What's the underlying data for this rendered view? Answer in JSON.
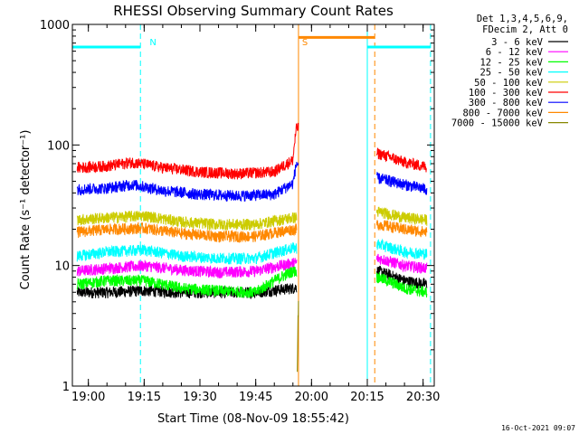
{
  "chart_data": {
    "type": "line",
    "title": "RHESSI Observing Summary Count Rates",
    "xlabel": "Start Time (08-Nov-09 18:55:42)",
    "ylabel": "Count Rate (s⁻¹ detector⁻¹)",
    "y_scale": "log",
    "ylim": [
      1,
      1000
    ],
    "xlim": [
      "18:55:42",
      "20:33:00"
    ],
    "x_ticks": [
      "19:00",
      "19:15",
      "19:30",
      "19:45",
      "20:00",
      "20:15",
      "20:30"
    ],
    "y_ticks": [
      "1",
      "10",
      "100",
      "1000"
    ],
    "grid": false,
    "legend_position": "right",
    "legend_header": [
      "Det 1,3,4,5,6,9,",
      "FDecim 2, Att 0"
    ],
    "footer_date": "16-Oct-2021 09:07",
    "annotations": [
      {
        "text": "N",
        "x": "19:15",
        "color": "#00ffff"
      },
      {
        "text": "S",
        "x": "19:56",
        "color": "#ff8800"
      }
    ],
    "time_intervals": [
      {
        "label": "night",
        "color": "#00ffff",
        "start": "18:55:42",
        "end": "19:14:00",
        "level": 650
      },
      {
        "label": "saa",
        "color": "#ff8800",
        "start": "19:56:30",
        "end": "20:17:00",
        "level": 780
      },
      {
        "label": "night",
        "color": "#00ffff",
        "start": "20:15:00",
        "end": "20:32:00",
        "level": 650
      }
    ],
    "markers": [
      {
        "x": "18:55:42",
        "color": "#00ffff",
        "style": "solid"
      },
      {
        "x": "19:14:00",
        "color": "#00ffff",
        "style": "dashed"
      },
      {
        "x": "19:56:30",
        "color": "#ff8800",
        "style": "solid"
      },
      {
        "x": "20:15:00",
        "color": "#00ffff",
        "style": "solid"
      },
      {
        "x": "20:17:00",
        "color": "#ff8800",
        "style": "dashed"
      },
      {
        "x": "20:32:00",
        "color": "#00ffff",
        "style": "dashed"
      }
    ],
    "series": [
      {
        "name": "3 - 6 keV",
        "color": "#000000",
        "data_gaps": [
          [
            "19:56:30",
            "20:17:30"
          ]
        ],
        "points": [
          [
            "18:57:00",
            6.0
          ],
          [
            "19:05:00",
            6.0
          ],
          [
            "19:15:00",
            6.2
          ],
          [
            "19:25:00",
            6.0
          ],
          [
            "19:35:00",
            6.0
          ],
          [
            "19:45:00",
            6.0
          ],
          [
            "19:55:00",
            6.5
          ],
          [
            "20:18:00",
            9.0
          ],
          [
            "20:25:00",
            7.5
          ],
          [
            "20:31:00",
            7.0
          ]
        ]
      },
      {
        "name": "6 - 12 keV",
        "color": "#ff00ff",
        "data_gaps": [
          [
            "19:56:30",
            "20:17:30"
          ]
        ],
        "points": [
          [
            "18:57:00",
            9.0
          ],
          [
            "19:05:00",
            9.5
          ],
          [
            "19:15:00",
            10.0
          ],
          [
            "19:25:00",
            9.2
          ],
          [
            "19:35:00",
            8.8
          ],
          [
            "19:45:00",
            9.0
          ],
          [
            "19:55:00",
            10.5
          ],
          [
            "20:18:00",
            11.5
          ],
          [
            "20:25:00",
            10.0
          ],
          [
            "20:31:00",
            9.5
          ]
        ]
      },
      {
        "name": "12 - 25 keV",
        "color": "#00ff00",
        "data_gaps": [
          [
            "19:56:30",
            "20:17:30"
          ]
        ],
        "points": [
          [
            "18:57:00",
            7.0
          ],
          [
            "19:05:00",
            7.5
          ],
          [
            "19:15:00",
            7.5
          ],
          [
            "19:25:00",
            6.5
          ],
          [
            "19:35:00",
            6.2
          ],
          [
            "19:45:00",
            6.0
          ],
          [
            "19:55:00",
            9.0
          ],
          [
            "20:18:00",
            8.0
          ],
          [
            "20:25:00",
            6.5
          ],
          [
            "20:31:00",
            6.0
          ]
        ]
      },
      {
        "name": "25 - 50 keV",
        "color": "#00ffff",
        "data_gaps": [
          [
            "19:56:30",
            "20:17:30"
          ]
        ],
        "points": [
          [
            "18:57:00",
            12.0
          ],
          [
            "19:05:00",
            13.0
          ],
          [
            "19:15:00",
            13.5
          ],
          [
            "19:25:00",
            12.0
          ],
          [
            "19:35:00",
            11.5
          ],
          [
            "19:45:00",
            11.5
          ],
          [
            "19:55:00",
            14.0
          ],
          [
            "20:18:00",
            15.0
          ],
          [
            "20:25:00",
            13.0
          ],
          [
            "20:31:00",
            12.5
          ]
        ]
      },
      {
        "name": "50 - 100 keV",
        "color": "#cccc00",
        "data_gaps": [
          [
            "19:56:30",
            "20:17:30"
          ]
        ],
        "points": [
          [
            "18:57:00",
            24.0
          ],
          [
            "19:05:00",
            25.0
          ],
          [
            "19:15:00",
            26.0
          ],
          [
            "19:25:00",
            23.0
          ],
          [
            "19:35:00",
            22.0
          ],
          [
            "19:45:00",
            22.0
          ],
          [
            "19:55:00",
            25.0
          ],
          [
            "20:18:00",
            28.0
          ],
          [
            "20:25:00",
            25.0
          ],
          [
            "20:31:00",
            24.0
          ]
        ]
      },
      {
        "name": "100 - 300 keV",
        "color": "#ff0000",
        "data_gaps": [
          [
            "19:56:30",
            "20:17:30"
          ]
        ],
        "points": [
          [
            "18:57:00",
            65.0
          ],
          [
            "19:05:00",
            67.0
          ],
          [
            "19:12:00",
            72.0
          ],
          [
            "19:20:00",
            65.0
          ],
          [
            "19:30:00",
            60.0
          ],
          [
            "19:40:00",
            58.0
          ],
          [
            "19:50:00",
            60.0
          ],
          [
            "19:55:00",
            75.0
          ],
          [
            "19:56:00",
            140.0
          ],
          [
            "20:18:00",
            85.0
          ],
          [
            "20:25:00",
            72.0
          ],
          [
            "20:31:00",
            66.0
          ]
        ]
      },
      {
        "name": "300 - 800 keV",
        "color": "#0000ff",
        "data_gaps": [
          [
            "19:56:30",
            "20:17:30"
          ]
        ],
        "points": [
          [
            "18:57:00",
            43.0
          ],
          [
            "19:05:00",
            44.0
          ],
          [
            "19:12:00",
            47.0
          ],
          [
            "19:20:00",
            42.0
          ],
          [
            "19:30:00",
            39.0
          ],
          [
            "19:40:00",
            38.0
          ],
          [
            "19:50:00",
            39.0
          ],
          [
            "19:55:00",
            48.0
          ],
          [
            "19:56:00",
            70.0
          ],
          [
            "20:18:00",
            53.0
          ],
          [
            "20:25:00",
            47.0
          ],
          [
            "20:31:00",
            43.0
          ]
        ]
      },
      {
        "name": "800 - 7000 keV",
        "color": "#ff8800",
        "data_gaps": [
          [
            "19:56:30",
            "20:17:30"
          ]
        ],
        "points": [
          [
            "18:57:00",
            19.0
          ],
          [
            "19:05:00",
            20.0
          ],
          [
            "19:15:00",
            20.5
          ],
          [
            "19:25:00",
            18.5
          ],
          [
            "19:35:00",
            17.5
          ],
          [
            "19:45:00",
            17.5
          ],
          [
            "19:55:00",
            20.0
          ],
          [
            "20:18:00",
            22.0
          ],
          [
            "20:25:00",
            20.0
          ],
          [
            "20:31:00",
            19.0
          ]
        ]
      },
      {
        "name": "7000 - 15000 keV",
        "color": "#888800",
        "data_gaps": [],
        "points": [
          [
            "19:56:10",
            1.2
          ],
          [
            "19:56:30",
            5.0
          ]
        ]
      }
    ]
  }
}
